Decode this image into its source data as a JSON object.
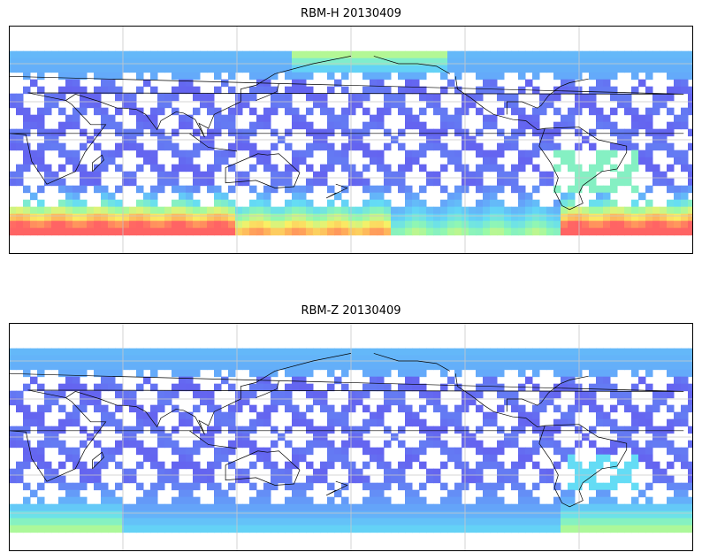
{
  "panels": [
    {
      "title": "RBM-H 20130409",
      "variant": "H"
    },
    {
      "title": "RBM-Z 20130409",
      "variant": "Z"
    }
  ],
  "map": {
    "projection": "equirectangular",
    "lon_range": [
      0,
      360
    ],
    "lat_range": [
      -90,
      90
    ],
    "data_lat_range": [
      -70,
      70
    ],
    "grid": true,
    "grid_lon_step": 60,
    "grid_lat_step": 30,
    "colormap": "jet",
    "colors": {
      "low": "#6464f0",
      "mid": "#64c8f5",
      "high": "#ff6464",
      "grid": "#c8c8c8",
      "coast": "#000000"
    }
  }
}
